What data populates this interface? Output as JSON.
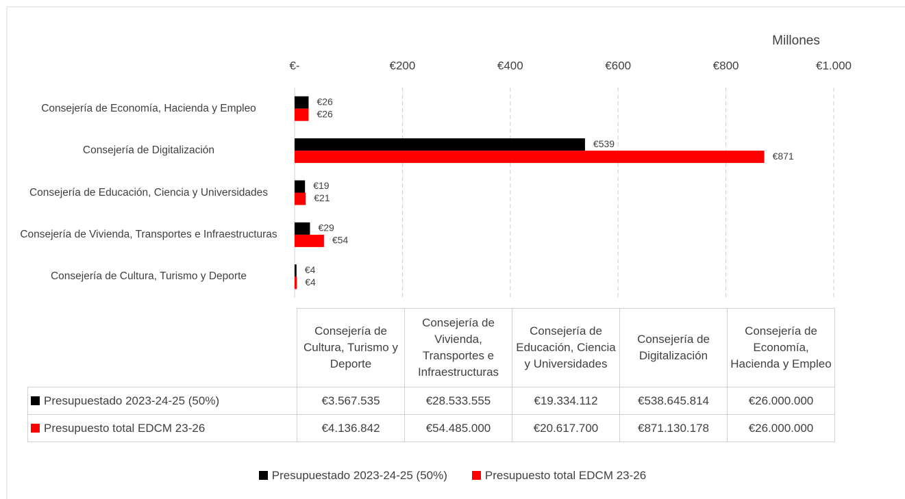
{
  "chart_data": {
    "type": "bar",
    "orientation": "horizontal",
    "axis_unit_label": "Millones",
    "categories": [
      "Consejería de Cultura, Turismo y Deporte",
      "Consejería de Vivienda, Transportes e Infraestructuras",
      "Consejería de Educación, Ciencia y Universidades",
      "Consejería de Digitalización",
      "Consejería de Economía, Hacienda y Empleo"
    ],
    "series": [
      {
        "name": "Presupuestado 2023-24-25 (50%)",
        "color": "#000000",
        "values": [
          3567535,
          28533555,
          19334112,
          538645814,
          26000000
        ],
        "value_labels": [
          "€4",
          "€29",
          "€19",
          "€539",
          "€26"
        ],
        "table_labels": [
          "€3.567.535",
          "€28.533.555",
          "€19.334.112",
          "€538.645.814",
          "€26.000.000"
        ]
      },
      {
        "name": "Presupuesto total EDCM 23-26",
        "color": "#ff0000",
        "values": [
          4136842,
          54485000,
          20617700,
          871130178,
          26000000
        ],
        "value_labels": [
          "€4",
          "€54",
          "€21",
          "€871",
          "€26"
        ],
        "table_labels": [
          "€4.136.842",
          "€54.485.000",
          "€20.617.700",
          "€871.130.178",
          "€26.000.000"
        ]
      }
    ],
    "xlim": [
      0,
      1000000000
    ],
    "xticks": [
      {
        "value": 0,
        "label": "€-"
      },
      {
        "value": 200000000,
        "label": "€200"
      },
      {
        "value": 400000000,
        "label": "€400"
      },
      {
        "value": 600000000,
        "label": "€600"
      },
      {
        "value": 800000000,
        "label": "€800"
      },
      {
        "value": 1000000000,
        "label": "€1.000"
      }
    ],
    "grid": true,
    "legend": "bottom"
  }
}
